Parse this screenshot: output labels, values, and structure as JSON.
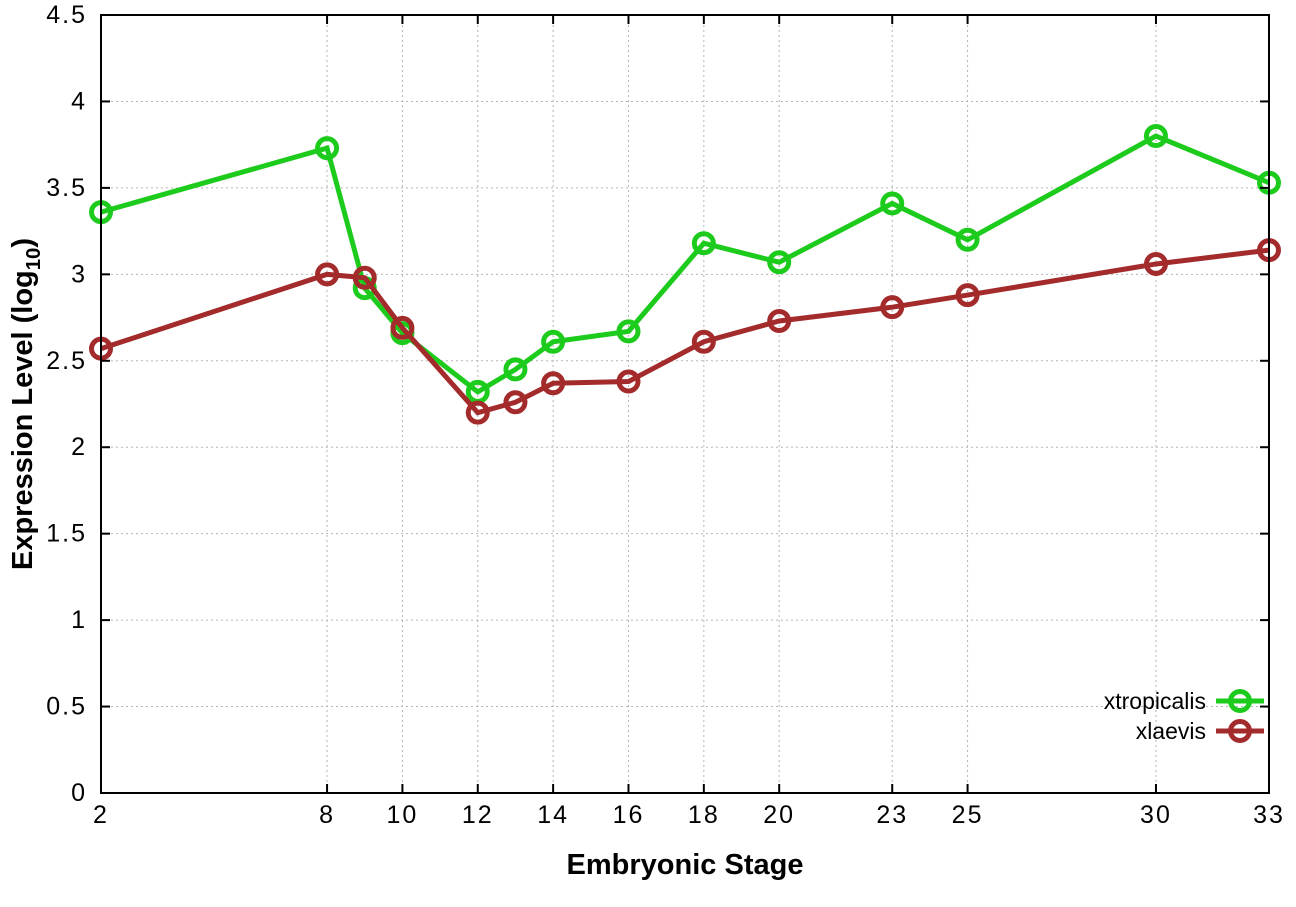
{
  "chart_data": {
    "type": "line",
    "title": "",
    "xlabel": "Embryonic Stage",
    "ylabel": "Expression Level (log10)",
    "ylabel_rich": {
      "prefix": "Expression Level (log",
      "sub": "10",
      "suffix": ")"
    },
    "x": [
      2,
      8,
      9,
      10,
      12,
      13,
      14,
      16,
      18,
      20,
      23,
      25,
      30,
      33
    ],
    "series": [
      {
        "name": "xtropicalis",
        "color": "#1ccb1c",
        "marker": "open-circle",
        "values": [
          3.36,
          3.73,
          2.92,
          2.66,
          2.32,
          2.45,
          2.61,
          2.67,
          3.18,
          3.07,
          3.41,
          3.2,
          3.8,
          3.53
        ]
      },
      {
        "name": "xlaevis",
        "color": "#a42b2b",
        "marker": "open-circle",
        "values": [
          2.57,
          3.0,
          2.98,
          2.69,
          2.2,
          2.26,
          2.37,
          2.38,
          2.61,
          2.73,
          2.81,
          2.88,
          3.06,
          3.14
        ]
      }
    ],
    "xlim": [
      2,
      33
    ],
    "ylim": [
      0,
      4.5
    ],
    "xticks": [
      2,
      8,
      10,
      12,
      14,
      16,
      18,
      20,
      23,
      25,
      30,
      33
    ],
    "xtick_labels": [
      "2",
      "8",
      "10",
      "12",
      "14",
      "16",
      "18",
      "20",
      "23",
      "25",
      "30",
      "33"
    ],
    "yticks": [
      0,
      0.5,
      1,
      1.5,
      2,
      2.5,
      3,
      3.5,
      4,
      4.5
    ],
    "ytick_labels": [
      "0",
      "0.5",
      "1",
      "1.5",
      "2",
      "2.5",
      "3",
      "3.5",
      "4",
      "4.5"
    ],
    "grid": true,
    "legend_position": "inside-bottom-right"
  },
  "colors": {
    "background": "#ffffff",
    "axis": "#000000",
    "grid": "#b5b5b5",
    "text": "#000000"
  }
}
